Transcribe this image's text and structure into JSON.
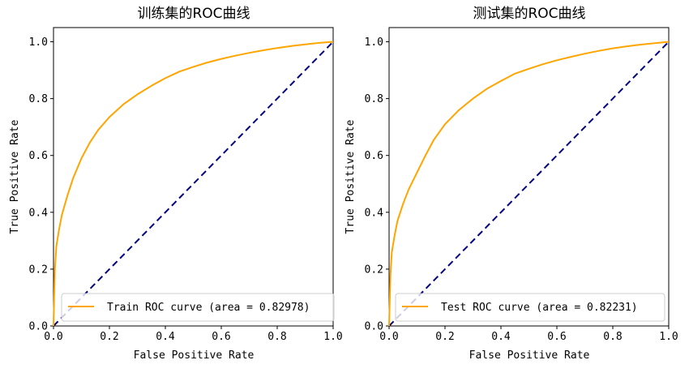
{
  "chart_data": [
    {
      "type": "line",
      "title": "训练集的ROC曲线",
      "xlabel": "False Positive Rate",
      "ylabel": "True Positive Rate",
      "xlim": [
        0.0,
        1.0
      ],
      "ylim": [
        0.0,
        1.05
      ],
      "xticks": [
        "0.0",
        "0.2",
        "0.4",
        "0.6",
        "0.8",
        "1.0"
      ],
      "yticks": [
        "0.0",
        "0.2",
        "0.4",
        "0.6",
        "0.8",
        "1.0"
      ],
      "legend_position": "lower-right",
      "series": [
        {
          "name": "Train ROC curve (area = 0.82978)",
          "color": "#ffa500",
          "style": "solid",
          "x": [
            0,
            0.005,
            0.01,
            0.02,
            0.03,
            0.05,
            0.07,
            0.1,
            0.13,
            0.16,
            0.2,
            0.25,
            0.3,
            0.35,
            0.4,
            0.45,
            0.5,
            0.55,
            0.6,
            0.65,
            0.7,
            0.75,
            0.8,
            0.85,
            0.9,
            0.95,
            1.0
          ],
          "y": [
            0,
            0.2,
            0.28,
            0.34,
            0.39,
            0.46,
            0.52,
            0.59,
            0.645,
            0.69,
            0.735,
            0.78,
            0.815,
            0.845,
            0.872,
            0.895,
            0.912,
            0.927,
            0.94,
            0.951,
            0.961,
            0.97,
            0.978,
            0.985,
            0.991,
            0.996,
            1.0
          ]
        },
        {
          "name": "diagonal",
          "color": "#000080",
          "style": "dashed",
          "x": [
            0,
            1
          ],
          "y": [
            0,
            1
          ]
        }
      ]
    },
    {
      "type": "line",
      "title": "测试集的ROC曲线",
      "xlabel": "False Positive Rate",
      "ylabel": "True Positive Rate",
      "xlim": [
        0.0,
        1.0
      ],
      "ylim": [
        0.0,
        1.05
      ],
      "xticks": [
        "0.0",
        "0.2",
        "0.4",
        "0.6",
        "0.8",
        "1.0"
      ],
      "yticks": [
        "0.0",
        "0.2",
        "0.4",
        "0.6",
        "0.8",
        "1.0"
      ],
      "legend_position": "lower-right",
      "series": [
        {
          "name": "Test ROC curve (area = 0.82231)",
          "color": "#ffa500",
          "style": "solid",
          "x": [
            0,
            0.005,
            0.01,
            0.02,
            0.03,
            0.05,
            0.07,
            0.1,
            0.13,
            0.16,
            0.2,
            0.25,
            0.3,
            0.35,
            0.4,
            0.45,
            0.5,
            0.55,
            0.6,
            0.65,
            0.7,
            0.75,
            0.8,
            0.85,
            0.9,
            0.95,
            1.0
          ],
          "y": [
            0,
            0.18,
            0.26,
            0.32,
            0.37,
            0.43,
            0.48,
            0.54,
            0.6,
            0.655,
            0.71,
            0.76,
            0.8,
            0.835,
            0.862,
            0.888,
            0.905,
            0.921,
            0.935,
            0.947,
            0.958,
            0.968,
            0.977,
            0.984,
            0.99,
            0.995,
            1.0
          ]
        },
        {
          "name": "diagonal",
          "color": "#000080",
          "style": "dashed",
          "x": [
            0,
            1
          ],
          "y": [
            0,
            1
          ]
        }
      ]
    }
  ]
}
